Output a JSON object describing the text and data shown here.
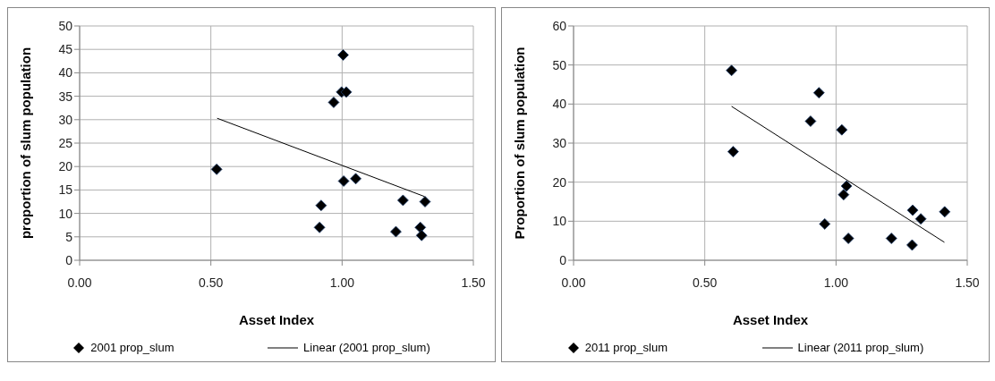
{
  "chart_data": [
    {
      "type": "scatter",
      "xlabel": "Asset Index",
      "ylabel": "proportion of slum population",
      "xlim": [
        0,
        1.5
      ],
      "xticks": [
        {
          "value": 0,
          "label": "0.00"
        },
        {
          "value": 0.5,
          "label": "0.50"
        },
        {
          "value": 1,
          "label": "1.00"
        },
        {
          "value": 1.5,
          "label": "1.50"
        }
      ],
      "ylim": [
        0,
        50
      ],
      "yticks": [
        0,
        5,
        10,
        15,
        20,
        25,
        30,
        35,
        40,
        45,
        50
      ],
      "grid": true,
      "legend": "bottom",
      "marker": "diamond",
      "series": [
        {
          "name": "2001 prop_slum",
          "color": "#000000",
          "x": [
            0.522,
            1.004,
            0.998,
            1.016,
            0.968,
            1.006,
            1.052,
            0.92,
            0.914,
            1.232,
            1.316,
            1.205,
            1.298,
            1.303
          ],
          "values": [
            19.4,
            43.8,
            35.9,
            35.9,
            33.7,
            16.9,
            17.4,
            11.7,
            7.0,
            12.8,
            12.5,
            6.1,
            7.0,
            5.3
          ]
        },
        {
          "name": "Linear (2001 prop_slum)",
          "type": "line",
          "color": "#000000",
          "marker": "none",
          "x": [
            0.524,
            1.314
          ],
          "values": [
            30.3,
            13.6
          ]
        }
      ]
    },
    {
      "type": "scatter",
      "xlabel": "Asset Index",
      "ylabel": "Proportion of slum population",
      "xlim": [
        0,
        1.5
      ],
      "xticks": [
        {
          "value": 0,
          "label": "0.00"
        },
        {
          "value": 0.5,
          "label": "0.50"
        },
        {
          "value": 1,
          "label": "1.00"
        },
        {
          "value": 1.5,
          "label": "1.50"
        }
      ],
      "ylim": [
        0,
        60
      ],
      "yticks": [
        0,
        10,
        20,
        30,
        40,
        50,
        60
      ],
      "grid": true,
      "legend": "bottom",
      "marker": "diamond",
      "series": [
        {
          "name": "2011 prop_slum",
          "color": "#000000",
          "x": [
            0.602,
            0.608,
            0.935,
            0.903,
            1.022,
            1.04,
            1.029,
            0.957,
            1.047,
            1.211,
            1.29,
            1.292,
            1.323,
            1.414
          ],
          "values": [
            48.6,
            27.8,
            42.9,
            35.6,
            33.4,
            19.0,
            16.8,
            9.3,
            5.6,
            5.6,
            3.9,
            12.8,
            10.6,
            12.4
          ]
        },
        {
          "name": "Linear (2011 prop_slum)",
          "type": "line",
          "color": "#000000",
          "marker": "none",
          "x": [
            0.602,
            1.413
          ],
          "values": [
            39.4,
            4.6
          ]
        }
      ]
    }
  ]
}
